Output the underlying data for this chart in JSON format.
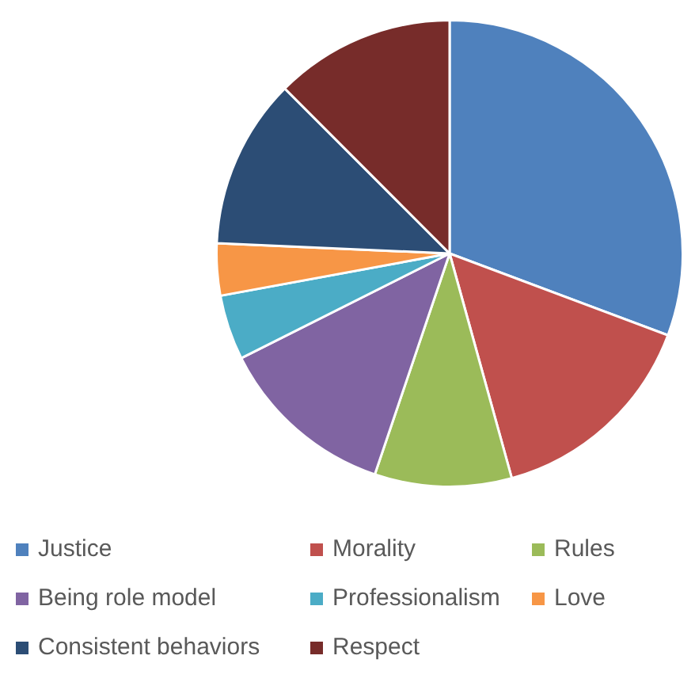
{
  "chart_data": {
    "type": "pie",
    "categories": [
      "Justice",
      "Morality",
      "Rules",
      "Being role model",
      "Professionalism",
      "Love",
      "Consistent behaviors",
      "Respect"
    ],
    "values": [
      30.7,
      15,
      9.5,
      12.4,
      4.5,
      3.6,
      11.8,
      12.5
    ],
    "colors": [
      "#4f81bd",
      "#c0504d",
      "#9bbb59",
      "#8064a2",
      "#4bacc6",
      "#f79646",
      "#2c4d75",
      "#772c2a"
    ],
    "legend": "bottom"
  }
}
